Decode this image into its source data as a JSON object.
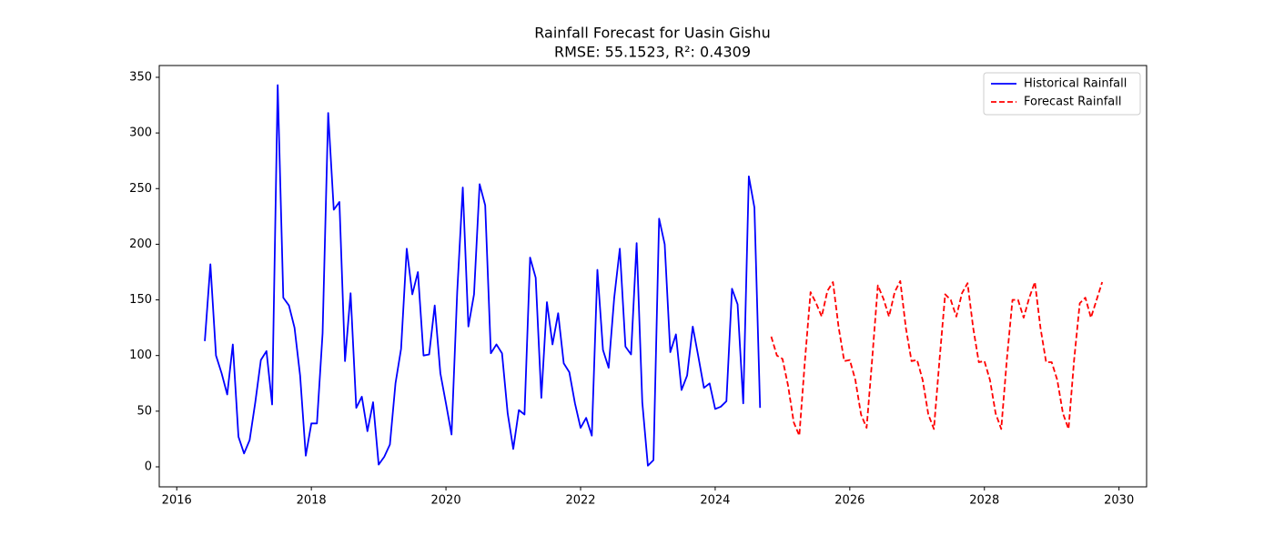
{
  "chart_data": {
    "type": "line",
    "title": "Rainfall Forecast for Uasin Gishu",
    "subtitle": "RMSE: 55.1523, R²: 0.4309",
    "xlim": [
      2015.74,
      2030.41
    ],
    "ylim": [
      -18,
      360.6
    ],
    "xticks": [
      2016,
      2018,
      2020,
      2022,
      2024,
      2026,
      2028,
      2030
    ],
    "yticks": [
      0,
      50,
      100,
      150,
      200,
      250,
      300,
      350
    ],
    "grid": false,
    "legend": "upper right",
    "series": [
      {
        "name": "Historical Rainfall",
        "color": "#0000ff",
        "linestyle": "solid",
        "x": [
          2016.417,
          2016.5,
          2016.583,
          2016.667,
          2016.75,
          2016.833,
          2016.917,
          2017,
          2017.083,
          2017.167,
          2017.25,
          2017.333,
          2017.417,
          2017.5,
          2017.583,
          2017.667,
          2017.75,
          2017.833,
          2017.917,
          2018,
          2018.083,
          2018.167,
          2018.25,
          2018.333,
          2018.417,
          2018.5,
          2018.583,
          2018.667,
          2018.75,
          2018.833,
          2018.917,
          2019,
          2019.083,
          2019.167,
          2019.25,
          2019.333,
          2019.417,
          2019.5,
          2019.583,
          2019.667,
          2019.75,
          2019.833,
          2019.917,
          2020,
          2020.083,
          2020.167,
          2020.25,
          2020.333,
          2020.417,
          2020.5,
          2020.583,
          2020.667,
          2020.75,
          2020.833,
          2020.917,
          2021,
          2021.083,
          2021.167,
          2021.25,
          2021.333,
          2021.417,
          2021.5,
          2021.583,
          2021.667,
          2021.75,
          2021.833,
          2021.917,
          2022,
          2022.083,
          2022.167,
          2022.25,
          2022.333,
          2022.417,
          2022.5,
          2022.583,
          2022.667,
          2022.75,
          2022.833,
          2022.917,
          2023,
          2023.083,
          2023.167,
          2023.25,
          2023.333,
          2023.417,
          2023.5,
          2023.583,
          2023.667,
          2023.75,
          2023.833,
          2023.917,
          2024,
          2024.083,
          2024.167,
          2024.25,
          2024.333,
          2024.417,
          2024.5,
          2024.583,
          2024.667
        ],
        "values": [
          113,
          182,
          100,
          84,
          65,
          110,
          27,
          12,
          24,
          58,
          96,
          104,
          56,
          343,
          152,
          145,
          125,
          82,
          10,
          39,
          39,
          120,
          318,
          231,
          238,
          95,
          156,
          53,
          63,
          32,
          58,
          2,
          9,
          20,
          75,
          106,
          196,
          155,
          175,
          100,
          101,
          145,
          84,
          57,
          29,
          157,
          251,
          126,
          155,
          254,
          235,
          102,
          110,
          102,
          48,
          16,
          51,
          47,
          188,
          170,
          62,
          148,
          110,
          138,
          93,
          85,
          57,
          35,
          44,
          28,
          177,
          105,
          89,
          152,
          196,
          108,
          101,
          201,
          58,
          1,
          6,
          223,
          200,
          103,
          119,
          69,
          82,
          126,
          99,
          71,
          75,
          52,
          54,
          59,
          160,
          146,
          57,
          261,
          233,
          53
        ]
      },
      {
        "name": "Forecast Rainfall",
        "color": "#ff0000",
        "linestyle": "dashed",
        "x": [
          2024.833,
          2024.917,
          2025,
          2025.083,
          2025.167,
          2025.25,
          2025.333,
          2025.417,
          2025.5,
          2025.583,
          2025.667,
          2025.75,
          2025.833,
          2025.917,
          2026,
          2026.083,
          2026.167,
          2026.25,
          2026.333,
          2026.417,
          2026.5,
          2026.583,
          2026.667,
          2026.75,
          2026.833,
          2026.917,
          2027,
          2027.083,
          2027.167,
          2027.25,
          2027.333,
          2027.417,
          2027.5,
          2027.583,
          2027.667,
          2027.75,
          2027.833,
          2027.917,
          2028,
          2028.083,
          2028.167,
          2028.25,
          2028.333,
          2028.417,
          2028.5,
          2028.583,
          2028.667,
          2028.75,
          2028.833,
          2028.917,
          2029,
          2029.083,
          2029.167,
          2029.25,
          2029.333,
          2029.417,
          2029.5,
          2029.583,
          2029.667,
          2029.75
        ],
        "values": [
          117,
          100,
          97,
          73,
          40,
          28,
          95,
          157,
          147,
          135,
          158,
          166,
          126,
          95,
          96,
          78,
          47,
          35,
          97,
          163,
          151,
          135,
          157,
          167,
          125,
          95,
          96,
          78,
          47,
          34,
          96,
          155,
          150,
          135,
          156,
          165,
          125,
          94,
          95,
          78,
          48,
          34,
          96,
          150,
          150,
          134,
          152,
          166,
          125,
          94,
          94,
          78,
          48,
          34,
          96,
          147,
          152,
          134,
          150,
          166
        ]
      }
    ]
  }
}
